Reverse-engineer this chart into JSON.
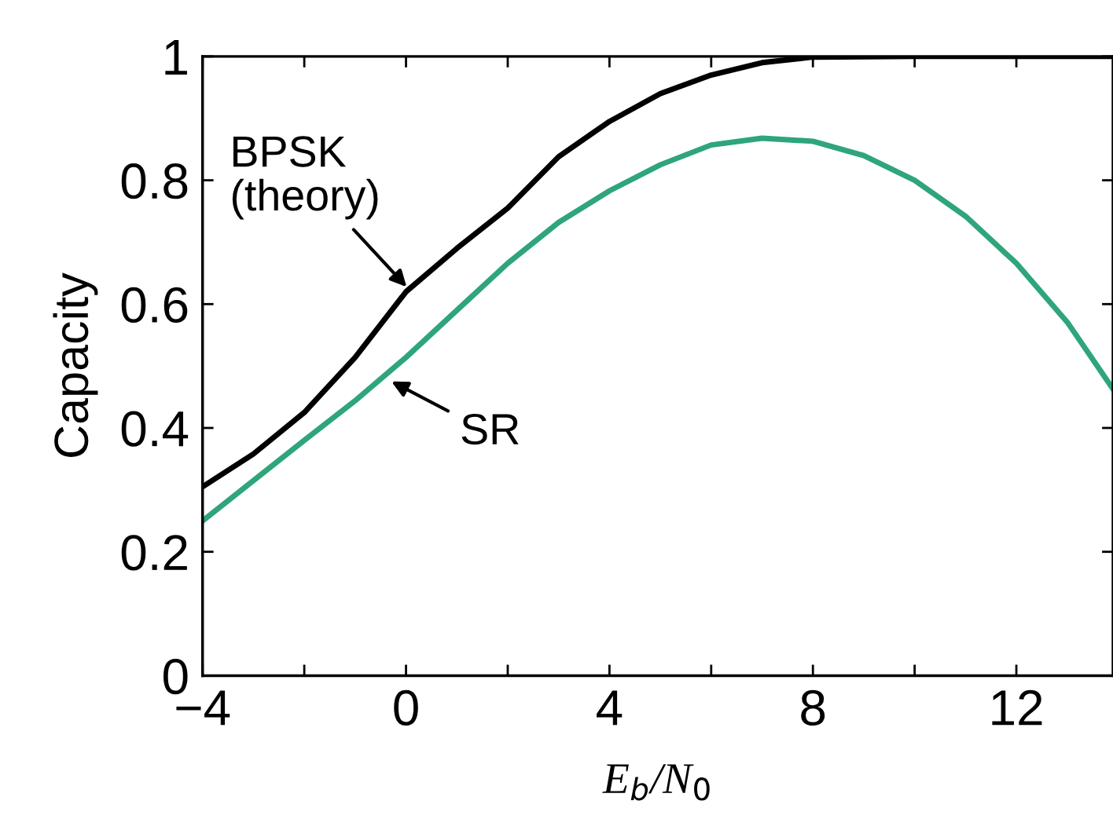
{
  "chart_data": {
    "type": "line",
    "xlabel": "E$_{b}$/N$_{0}$",
    "ylabel": "Capacity",
    "xlim": [
      -4,
      13.9
    ],
    "ylim": [
      0,
      1
    ],
    "xticks": [
      -4,
      {
        "value": -2,
        "label": null
      },
      0,
      {
        "value": 2,
        "label": null
      },
      4,
      {
        "value": 6,
        "label": null
      },
      8,
      {
        "value": 10,
        "label": null
      },
      12
    ],
    "yticks": [
      0,
      0.2,
      0.4,
      0.6,
      0.8,
      1
    ],
    "grid": false,
    "legend": false,
    "marker": "none",
    "line_style": "solid",
    "series": [
      {
        "color": "#000000",
        "x": [
          -4,
          -3,
          -2,
          -1,
          0,
          1,
          2,
          3,
          4,
          5,
          6,
          7,
          8,
          10,
          12,
          13.9
        ],
        "values": [
          0.305,
          0.358,
          0.425,
          0.514,
          0.62,
          0.69,
          0.755,
          0.838,
          0.895,
          0.94,
          0.97,
          0.99,
          0.999,
          1.0,
          1.0,
          1.0
        ]
      },
      {
        "color": "#2ea57a",
        "x": [
          -4,
          -3,
          -2,
          -1,
          0,
          1,
          2,
          3,
          4,
          5,
          6,
          7,
          8,
          9,
          10,
          11,
          12,
          13,
          13.9
        ],
        "values": [
          0.25,
          0.315,
          0.38,
          0.444,
          0.514,
          0.59,
          0.666,
          0.732,
          0.783,
          0.825,
          0.857,
          0.868,
          0.863,
          0.84,
          0.8,
          0.742,
          0.666,
          0.571,
          0.463
        ]
      }
    ],
    "annotations": [
      {
        "text": "BPSK\n(theory)",
        "x": 0.1,
        "y": 0.62
      },
      {
        "text": "SR",
        "x": -0.4,
        "y": 0.48
      }
    ]
  }
}
